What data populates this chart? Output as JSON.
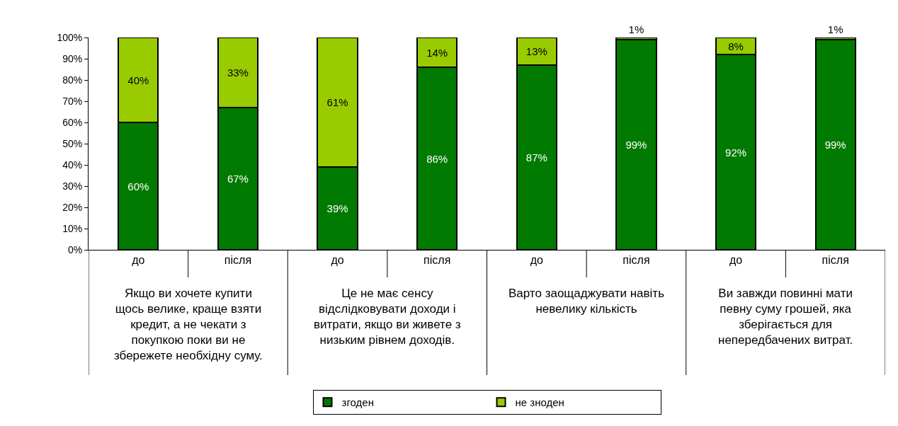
{
  "chart_data": {
    "type": "bar",
    "stacked": true,
    "categories": [
      "до",
      "після",
      "до",
      "після",
      "до",
      "після",
      "до",
      "після"
    ],
    "series": [
      {
        "name": "згоден",
        "color": "#007a00",
        "values": [
          60,
          67,
          39,
          86,
          87,
          99,
          92,
          99
        ],
        "value_labels": [
          "60%",
          "67%",
          "39%",
          "86%",
          "87%",
          "99%",
          "92%",
          "99%"
        ]
      },
      {
        "name": "не зноден",
        "color": "#99cc00",
        "values": [
          40,
          33,
          61,
          14,
          13,
          1,
          8,
          1
        ],
        "value_labels": [
          "40%",
          "33%",
          "61%",
          "14%",
          "13%",
          "1%",
          "8%",
          "1%"
        ]
      }
    ],
    "ylim": [
      0,
      100
    ],
    "yticks": [
      {
        "value": 0,
        "label": "0%"
      },
      {
        "value": 10,
        "label": "10%"
      },
      {
        "value": 20,
        "label": "20%"
      },
      {
        "value": 30,
        "label": "30%"
      },
      {
        "value": 40,
        "label": "40%"
      },
      {
        "value": 50,
        "label": "50%"
      },
      {
        "value": 60,
        "label": "60%"
      },
      {
        "value": 70,
        "label": "70%"
      },
      {
        "value": 80,
        "label": "80%"
      },
      {
        "value": 90,
        "label": "90%"
      },
      {
        "value": 100,
        "label": "100%"
      }
    ],
    "grid": false,
    "legend": "bottom",
    "annotations": [
      "Якщо ви хочете купити\nщось велике, краще взяти\nкредит, а не чекати з\nпокупкою поки ви не\nзбережете необхідну суму.",
      "Це не має сенсу\nвідслідковувати доходи і\nвитрати, якщо ви живете з\nнизьким рівнем доходів.",
      "Варто заощаджувати навіть\nневелику кількість",
      "Ви завжди повинні мати\nпевну суму грошей, яка\nзберігається для\nнепередбачених витрат."
    ]
  }
}
